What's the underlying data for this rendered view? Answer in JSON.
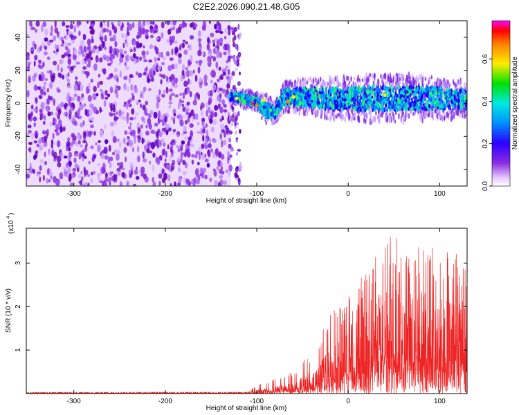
{
  "title": "C2E2.2026.090.21.48.G05",
  "chart_data": [
    {
      "type": "heatmap",
      "name": "spectrogram",
      "xlabel": "Height of straight line (km)",
      "ylabel": "Frequency (Hz)",
      "xlim": [
        -352,
        130
      ],
      "ylim": [
        -50,
        50
      ],
      "xticks": [
        -300,
        -200,
        -100,
        0,
        100
      ],
      "yticks": [
        -40,
        -20,
        0,
        20,
        40
      ],
      "xtick_labels": [
        "-300",
        "-200",
        "-100",
        "0",
        "100"
      ],
      "ytick_labels": [
        "-40",
        "-20",
        "0",
        "20",
        "40"
      ],
      "noise_region": {
        "x_from": -352,
        "x_to": -128,
        "y_from": -50,
        "y_to": 50
      },
      "signal_track": [
        {
          "x": -130,
          "freq": 4,
          "halfwidth": 2
        },
        {
          "x": -115,
          "freq": 3,
          "halfwidth": 3
        },
        {
          "x": -100,
          "freq": 1,
          "halfwidth": 3
        },
        {
          "x": -90,
          "freq": -4,
          "halfwidth": 5
        },
        {
          "x": -80,
          "freq": -5,
          "halfwidth": 4
        },
        {
          "x": -70,
          "freq": 4,
          "halfwidth": 5
        },
        {
          "x": -50,
          "freq": 4,
          "halfwidth": 6
        },
        {
          "x": -20,
          "freq": 3,
          "halfwidth": 7
        },
        {
          "x": 20,
          "freq": 3,
          "halfwidth": 8
        },
        {
          "x": 60,
          "freq": 3,
          "halfwidth": 8
        },
        {
          "x": 100,
          "freq": 3,
          "halfwidth": 7
        },
        {
          "x": 130,
          "freq": 2,
          "halfwidth": 6
        }
      ],
      "colorbar": {
        "label": "Normalized spectral amplitude",
        "range": [
          0,
          0.78
        ],
        "ticks": [
          0.0,
          0.2,
          0.4,
          0.6
        ],
        "tick_labels": [
          "0.0",
          "0.2",
          "0.4",
          "0.6"
        ]
      }
    },
    {
      "type": "line",
      "name": "snr",
      "xlabel": "Height of straight line (km)",
      "ylabel": "SNR (10 * v/v)",
      "multiplier_label": "(x10",
      "multiplier_exponent": "4",
      "xlim": [
        -352,
        130
      ],
      "ylim": [
        0,
        3.8
      ],
      "xticks": [
        -300,
        -200,
        -100,
        0,
        100
      ],
      "yticks": [
        1,
        2,
        3
      ],
      "xtick_labels": [
        "-300",
        "-200",
        "-100",
        "0",
        "100"
      ],
      "ytick_labels": [
        "1",
        "2",
        "3"
      ],
      "series_color": "#ee2222",
      "envelope": [
        {
          "x": -352,
          "max": 0.03,
          "mean": 0.02
        },
        {
          "x": -110,
          "max": 0.04,
          "mean": 0.02
        },
        {
          "x": -100,
          "max": 0.2,
          "mean": 0.05
        },
        {
          "x": -80,
          "max": 0.35,
          "mean": 0.1
        },
        {
          "x": -60,
          "max": 0.5,
          "mean": 0.15
        },
        {
          "x": -40,
          "max": 1.0,
          "mean": 0.3
        },
        {
          "x": -20,
          "max": 1.8,
          "mean": 0.6
        },
        {
          "x": 0,
          "max": 2.3,
          "mean": 0.9
        },
        {
          "x": 20,
          "max": 2.8,
          "mean": 1.2
        },
        {
          "x": 40,
          "max": 3.6,
          "mean": 1.5
        },
        {
          "x": 60,
          "max": 3.7,
          "mean": 1.5
        },
        {
          "x": 80,
          "max": 3.5,
          "mean": 1.4
        },
        {
          "x": 100,
          "max": 3.4,
          "mean": 1.4
        },
        {
          "x": 130,
          "max": 3.2,
          "mean": 1.3
        }
      ]
    }
  ]
}
